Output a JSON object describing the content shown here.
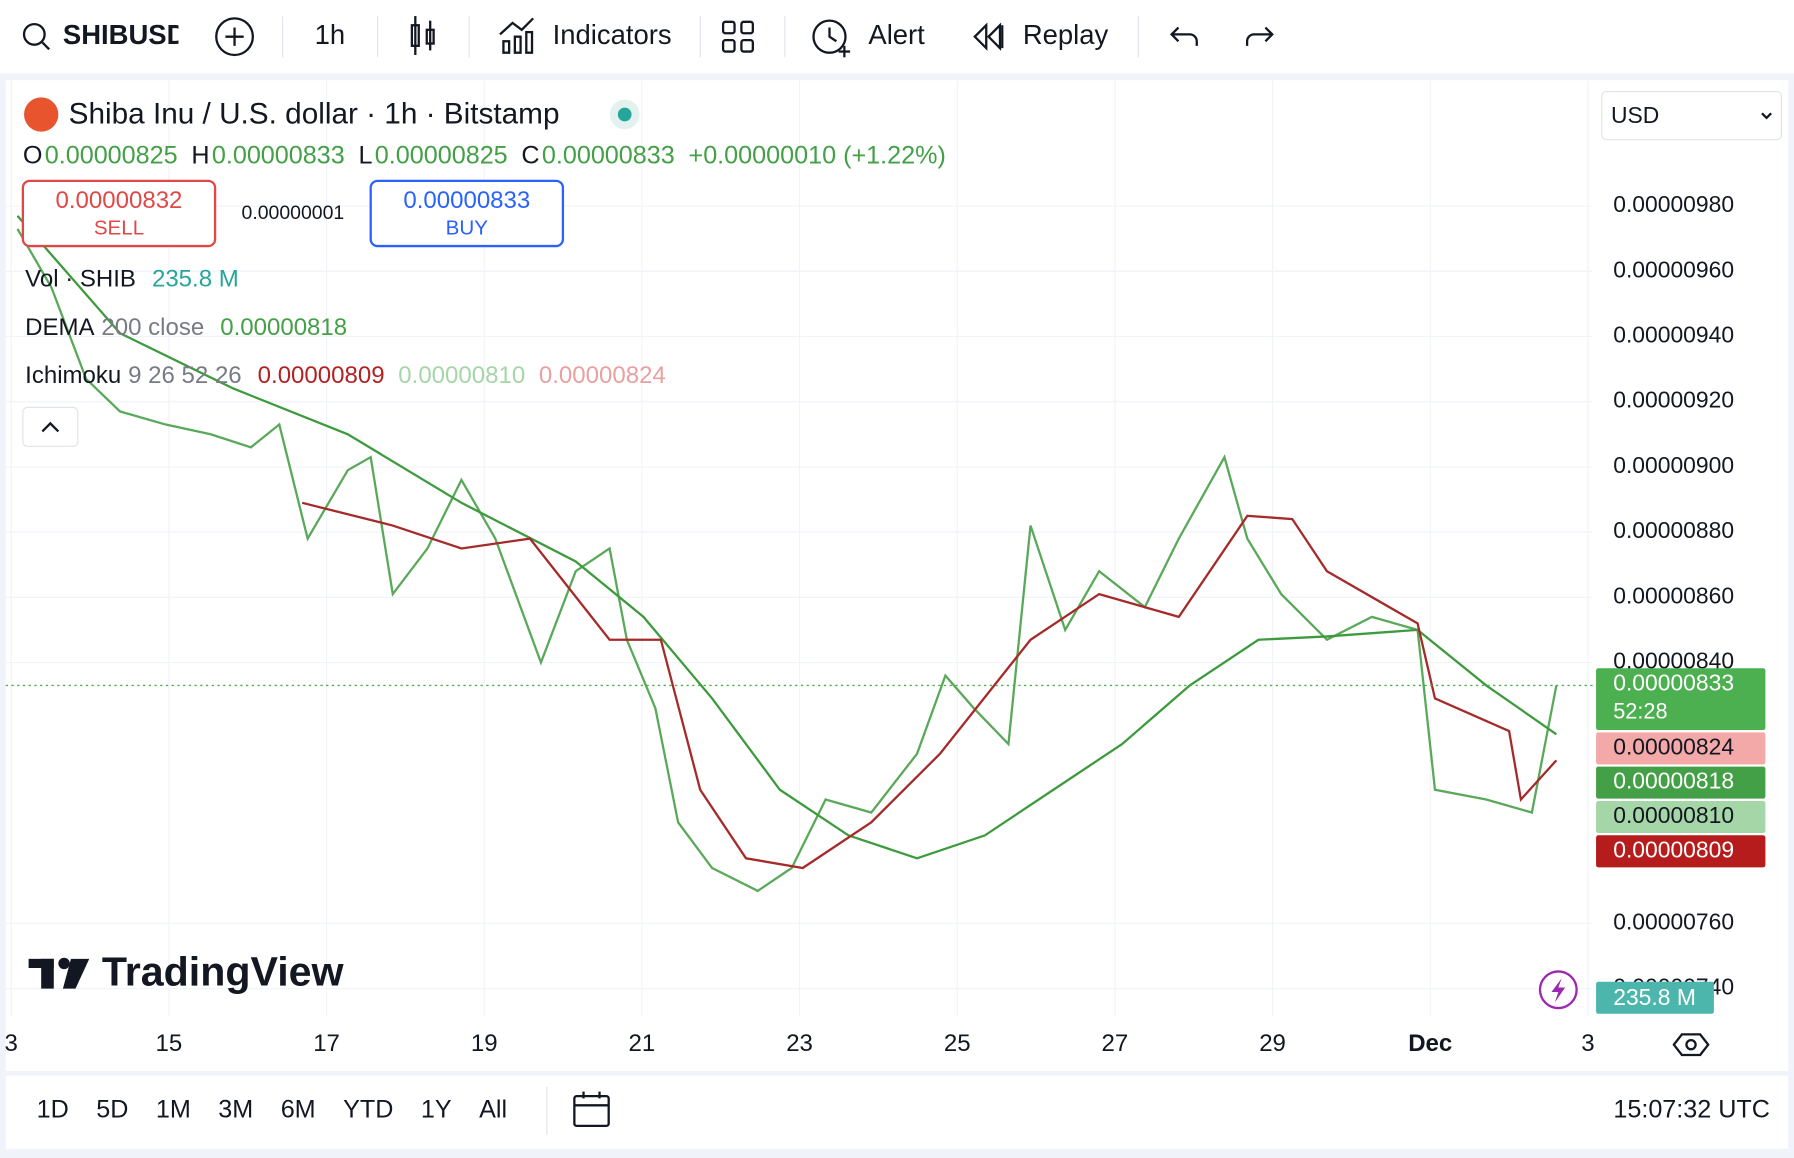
{
  "toolbar": {
    "symbol": "SHIBUSD",
    "interval": "1h",
    "indicators": "Indicators",
    "alert": "Alert",
    "replay": "Replay"
  },
  "legend": {
    "title": "Shiba Inu / U.S. dollar · 1h · Bitstamp",
    "ohlc": [
      {
        "label": "O",
        "value": "0.00000825"
      },
      {
        "label": "H",
        "value": "0.00000833"
      },
      {
        "label": "L",
        "value": "0.00000825"
      },
      {
        "label": "C",
        "value": "0.00000833"
      }
    ],
    "change": "+0.00000010 (+1.22%)",
    "sell": {
      "price": "0.00000832",
      "label": "SELL"
    },
    "spread": "0.00000001",
    "buy": {
      "price": "0.00000833",
      "label": "BUY"
    },
    "indicators": [
      {
        "name": "Vol · SHIB",
        "values": [
          "235.8 M"
        ],
        "colors": [
          "#26a69a"
        ]
      },
      {
        "name": "DEMA",
        "params": "200 close",
        "values": [
          "0.00000818"
        ],
        "colors": [
          "#43a047"
        ]
      },
      {
        "name": "Ichimoku",
        "params": "9 26 52 26",
        "values": [
          "0.00000809",
          "0.00000810",
          "0.00000824"
        ],
        "colors": [
          "#b22222",
          "#a5d6a7",
          "#e8a0a0"
        ]
      }
    ]
  },
  "currency": "USD",
  "chart": {
    "type": "line",
    "xlim": [
      12.93,
      33.06
    ],
    "xticks": [
      {
        "value": 13,
        "label": "3"
      },
      15,
      17,
      19,
      21,
      23,
      25,
      27,
      29,
      {
        "value": 31,
        "label": "Dec"
      },
      {
        "value": 33,
        "label": "3"
      }
    ],
    "ylim": [
      7.316e-06,
      1.0186e-05
    ],
    "yticks": [
      {
        "value": 7.4e-06,
        "label": "0.00000740"
      },
      {
        "value": 7.6e-06,
        "label": "0.00000760"
      },
      {
        "value": 8.4e-06,
        "label": "0.00000840"
      },
      {
        "value": 8.6e-06,
        "label": "0.00000860"
      },
      {
        "value": 8.8e-06,
        "label": "0.00000880"
      },
      {
        "value": 9e-06,
        "label": "0.00000900"
      },
      {
        "value": 9.2e-06,
        "label": "0.00000920"
      },
      {
        "value": 9.4e-06,
        "label": "0.00000940"
      },
      {
        "value": 9.6e-06,
        "label": "0.00000960"
      },
      {
        "value": 9.8e-06,
        "label": "0.00000980"
      }
    ],
    "grid": true,
    "series": [
      {
        "color": "#5aa85a",
        "x": [
          13.08,
          13.51,
          13.95,
          14.38,
          14.96,
          15.53,
          16.04,
          16.4,
          16.76,
          17.27,
          17.56,
          17.84,
          18.28,
          18.71,
          19.14,
          19.72,
          20.16,
          20.59,
          20.81,
          21.17,
          21.46,
          21.89,
          22.47,
          22.9,
          23.33,
          23.91,
          24.49,
          24.85,
          25.21,
          25.65,
          25.93,
          26.37,
          26.8,
          27.38,
          27.81,
          28.39,
          28.68,
          29.11,
          29.69,
          30.26,
          30.84,
          31.06,
          31.71,
          32.29,
          32.6
        ],
        "values": [
          9.73e-06,
          9.55e-06,
          9.27e-06,
          9.17e-06,
          9.13e-06,
          9.1e-06,
          9.06e-06,
          9.13e-06,
          8.78e-06,
          8.99e-06,
          9.03e-06,
          8.61e-06,
          8.75e-06,
          8.96e-06,
          8.78e-06,
          8.4e-06,
          8.68e-06,
          8.75e-06,
          8.47e-06,
          8.26e-06,
          7.91e-06,
          7.77e-06,
          7.7e-06,
          7.77e-06,
          7.98e-06,
          7.94e-06,
          8.12e-06,
          8.36e-06,
          8.26e-06,
          8.15e-06,
          8.82e-06,
          8.5e-06,
          8.68e-06,
          8.57e-06,
          8.78e-06,
          9.03e-06,
          8.78e-06,
          8.61e-06,
          8.47e-06,
          8.54e-06,
          8.5e-06,
          8.01e-06,
          7.98e-06,
          7.94e-06,
          8.33e-06
        ]
      },
      {
        "name": "DEMA 200 close",
        "color": "#3d9a3d",
        "x": [
          13.08,
          14.38,
          15.82,
          17.27,
          18.71,
          20.16,
          21.02,
          21.89,
          22.75,
          23.62,
          24.49,
          25.35,
          26.22,
          27.09,
          27.95,
          28.82,
          29.69,
          30.84,
          31.71,
          32.6
        ],
        "values": [
          9.77e-06,
          9.41e-06,
          9.24e-06,
          9.1e-06,
          8.89e-06,
          8.71e-06,
          8.54e-06,
          8.29e-06,
          8.01e-06,
          7.87e-06,
          7.8e-06,
          7.87e-06,
          8.01e-06,
          8.15e-06,
          8.33e-06,
          8.47e-06,
          8.48e-06,
          8.5e-06,
          8.33e-06,
          8.18e-06
        ]
      },
      {
        "color": "#a52a2a",
        "x": [
          16.69,
          17.84,
          18.71,
          19.58,
          20.59,
          21.24,
          21.74,
          22.32,
          23.04,
          23.91,
          24.78,
          25.93,
          26.8,
          27.81,
          28.68,
          29.25,
          29.69,
          30.84,
          31.06,
          32.0,
          32.15,
          32.6
        ],
        "values": [
          8.89e-06,
          8.82e-06,
          8.75e-06,
          8.78e-06,
          8.47e-06,
          8.47e-06,
          8.01e-06,
          7.8e-06,
          7.77e-06,
          7.91e-06,
          8.12e-06,
          8.47e-06,
          8.61e-06,
          8.54e-06,
          8.85e-06,
          8.84e-06,
          8.68e-06,
          8.52e-06,
          8.29e-06,
          8.19e-06,
          7.98e-06,
          8.1e-06
        ]
      }
    ],
    "price_labels": [
      {
        "text": "0.00000833",
        "sub": "52:28",
        "color": "#4caf50",
        "text_color": "#ffffff"
      },
      {
        "text": "0.00000824",
        "color": "#f4a9a9",
        "text_color": "#131722"
      },
      {
        "text": "0.00000818",
        "color": "#43a047",
        "text_color": "#ffffff"
      },
      {
        "text": "0.00000810",
        "color": "#a5d6a7",
        "text_color": "#131722"
      },
      {
        "text": "0.00000809",
        "color": "#b71c1c",
        "text_color": "#ffffff"
      }
    ],
    "volume_label": {
      "text": "235.8 M",
      "color": "#4db6ac"
    }
  },
  "watermark": "TradingView",
  "footer": {
    "ranges": [
      "1D",
      "5D",
      "1M",
      "3M",
      "6M",
      "YTD",
      "1Y",
      "All"
    ],
    "clock": "15:07:32 UTC"
  }
}
